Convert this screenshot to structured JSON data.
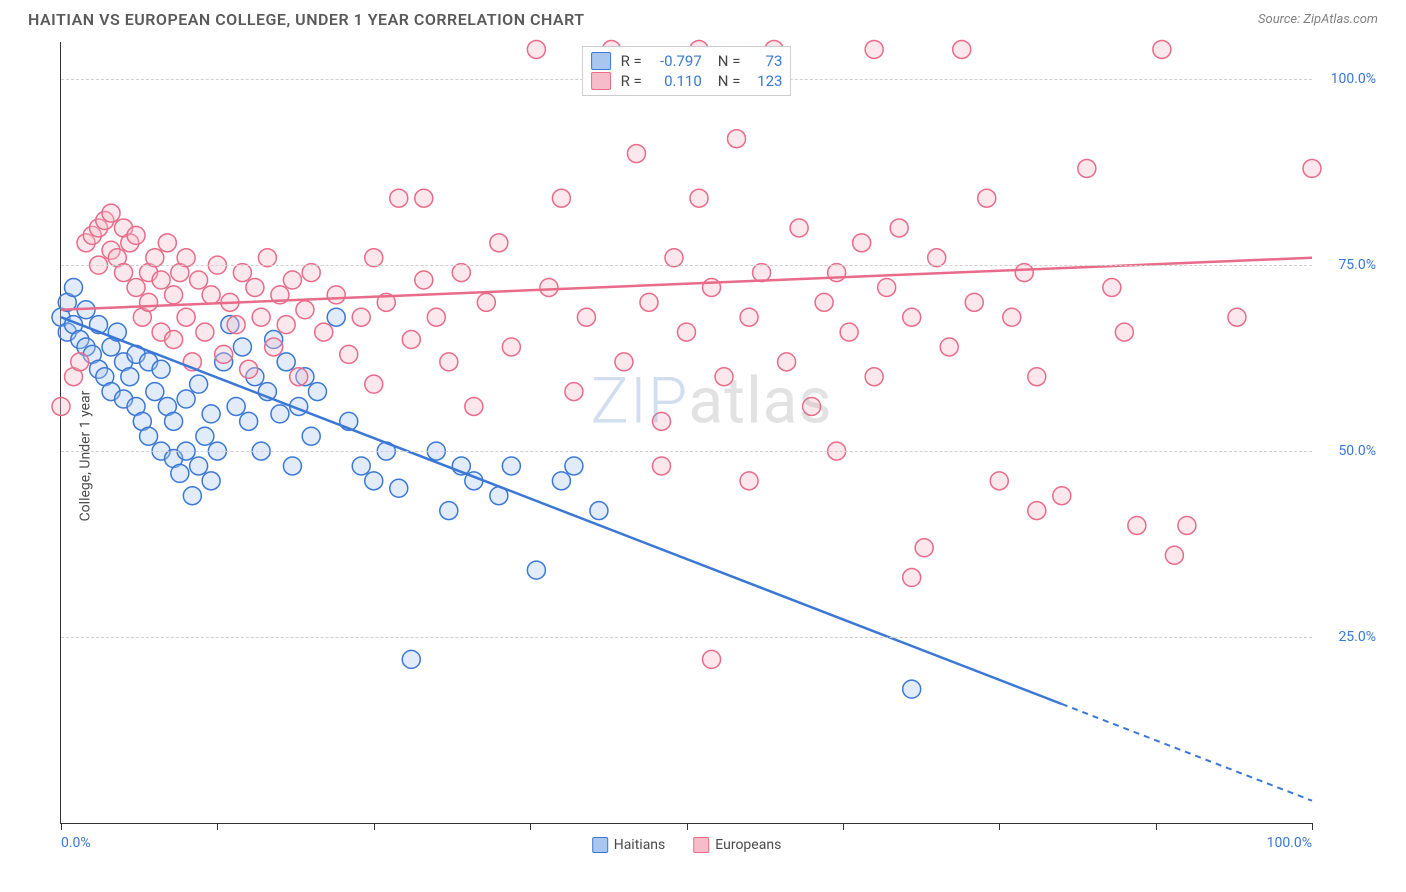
{
  "header": {
    "title": "HAITIAN VS EUROPEAN COLLEGE, UNDER 1 YEAR CORRELATION CHART",
    "source": "Source: ZipAtlas.com"
  },
  "watermark": {
    "part1": "ZIP",
    "part2": "atlas"
  },
  "chart": {
    "type": "scatter",
    "ylabel": "College, Under 1 year",
    "background_color": "#ffffff",
    "grid_color": "#d0d0d0",
    "axis_color": "#333333",
    "tick_label_color": "#3878d6",
    "xlim": [
      0,
      100
    ],
    "ylim": [
      0,
      105
    ],
    "xticks": [
      0,
      12.5,
      25,
      37.5,
      50,
      62.5,
      75,
      87.5,
      100
    ],
    "xtick_labels": {
      "0": "0.0%",
      "100": "100.0%"
    },
    "yticks": [
      25,
      50,
      75,
      100
    ],
    "ytick_labels": {
      "25": "25.0%",
      "50": "50.0%",
      "75": "75.0%",
      "100": "100.0%"
    },
    "marker_radius": 9,
    "marker_stroke_width": 1.5,
    "marker_fill_opacity": 0.35,
    "line_width": 2.5,
    "series": [
      {
        "key": "haitians",
        "label": "Haitians",
        "color_stroke": "#3b78d6",
        "color_fill": "#a9c6ef",
        "R": "-0.797",
        "N": "73",
        "trend": {
          "x1": 0,
          "y1": 68,
          "x2": 100,
          "y2": 3,
          "dash_from_x": 80
        },
        "points": [
          [
            0,
            68
          ],
          [
            0.5,
            70
          ],
          [
            0.5,
            66
          ],
          [
            1,
            67
          ],
          [
            1,
            72
          ],
          [
            1.5,
            65
          ],
          [
            2,
            64
          ],
          [
            2,
            69
          ],
          [
            2.5,
            63
          ],
          [
            3,
            67
          ],
          [
            3,
            61
          ],
          [
            3.5,
            60
          ],
          [
            4,
            64
          ],
          [
            4,
            58
          ],
          [
            4.5,
            66
          ],
          [
            5,
            62
          ],
          [
            5,
            57
          ],
          [
            5.5,
            60
          ],
          [
            6,
            56
          ],
          [
            6,
            63
          ],
          [
            6.5,
            54
          ],
          [
            7,
            62
          ],
          [
            7,
            52
          ],
          [
            7.5,
            58
          ],
          [
            8,
            50
          ],
          [
            8,
            61
          ],
          [
            8.5,
            56
          ],
          [
            9,
            54
          ],
          [
            9,
            49
          ],
          [
            9.5,
            47
          ],
          [
            10,
            57
          ],
          [
            10,
            50
          ],
          [
            10.5,
            44
          ],
          [
            11,
            59
          ],
          [
            11,
            48
          ],
          [
            11.5,
            52
          ],
          [
            12,
            55
          ],
          [
            12,
            46
          ],
          [
            12.5,
            50
          ],
          [
            13,
            62
          ],
          [
            13.5,
            67
          ],
          [
            14,
            56
          ],
          [
            14.5,
            64
          ],
          [
            15,
            54
          ],
          [
            15.5,
            60
          ],
          [
            16,
            50
          ],
          [
            16.5,
            58
          ],
          [
            17,
            65
          ],
          [
            17.5,
            55
          ],
          [
            18,
            62
          ],
          [
            18.5,
            48
          ],
          [
            19,
            56
          ],
          [
            19.5,
            60
          ],
          [
            20,
            52
          ],
          [
            20.5,
            58
          ],
          [
            22,
            68
          ],
          [
            23,
            54
          ],
          [
            24,
            48
          ],
          [
            25,
            46
          ],
          [
            26,
            50
          ],
          [
            27,
            45
          ],
          [
            28,
            22
          ],
          [
            30,
            50
          ],
          [
            31,
            42
          ],
          [
            32,
            48
          ],
          [
            33,
            46
          ],
          [
            35,
            44
          ],
          [
            36,
            48
          ],
          [
            38,
            34
          ],
          [
            40,
            46
          ],
          [
            41,
            48
          ],
          [
            43,
            42
          ],
          [
            68,
            18
          ]
        ]
      },
      {
        "key": "europeans",
        "label": "Europeans",
        "color_stroke": "#e86b8a",
        "color_fill": "#f7bcc9",
        "R": "0.110",
        "N": "123",
        "trend": {
          "x1": 0,
          "y1": 69,
          "x2": 100,
          "y2": 76,
          "dash_from_x": 100
        },
        "points": [
          [
            0,
            56
          ],
          [
            1,
            60
          ],
          [
            1.5,
            62
          ],
          [
            2,
            78
          ],
          [
            2.5,
            79
          ],
          [
            3,
            80
          ],
          [
            3,
            75
          ],
          [
            3.5,
            81
          ],
          [
            4,
            77
          ],
          [
            4,
            82
          ],
          [
            4.5,
            76
          ],
          [
            5,
            80
          ],
          [
            5,
            74
          ],
          [
            5.5,
            78
          ],
          [
            6,
            72
          ],
          [
            6,
            79
          ],
          [
            6.5,
            68
          ],
          [
            7,
            74
          ],
          [
            7,
            70
          ],
          [
            7.5,
            76
          ],
          [
            8,
            66
          ],
          [
            8,
            73
          ],
          [
            8.5,
            78
          ],
          [
            9,
            71
          ],
          [
            9,
            65
          ],
          [
            9.5,
            74
          ],
          [
            10,
            68
          ],
          [
            10,
            76
          ],
          [
            10.5,
            62
          ],
          [
            11,
            73
          ],
          [
            11.5,
            66
          ],
          [
            12,
            71
          ],
          [
            12.5,
            75
          ],
          [
            13,
            63
          ],
          [
            13.5,
            70
          ],
          [
            14,
            67
          ],
          [
            14.5,
            74
          ],
          [
            15,
            61
          ],
          [
            15.5,
            72
          ],
          [
            16,
            68
          ],
          [
            16.5,
            76
          ],
          [
            17,
            64
          ],
          [
            17.5,
            71
          ],
          [
            18,
            67
          ],
          [
            18.5,
            73
          ],
          [
            19,
            60
          ],
          [
            19.5,
            69
          ],
          [
            20,
            74
          ],
          [
            21,
            66
          ],
          [
            22,
            71
          ],
          [
            23,
            63
          ],
          [
            24,
            68
          ],
          [
            25,
            59
          ],
          [
            25,
            76
          ],
          [
            26,
            70
          ],
          [
            27,
            84
          ],
          [
            28,
            65
          ],
          [
            29,
            73
          ],
          [
            29,
            84
          ],
          [
            30,
            68
          ],
          [
            31,
            62
          ],
          [
            32,
            74
          ],
          [
            33,
            56
          ],
          [
            34,
            70
          ],
          [
            35,
            78
          ],
          [
            36,
            64
          ],
          [
            38,
            104
          ],
          [
            39,
            72
          ],
          [
            40,
            84
          ],
          [
            41,
            58
          ],
          [
            42,
            68
          ],
          [
            44,
            104
          ],
          [
            45,
            62
          ],
          [
            46,
            90
          ],
          [
            47,
            70
          ],
          [
            48,
            54
          ],
          [
            49,
            76
          ],
          [
            50,
            66
          ],
          [
            51,
            104
          ],
          [
            51,
            84
          ],
          [
            52,
            72
          ],
          [
            52,
            22
          ],
          [
            53,
            60
          ],
          [
            54,
            92
          ],
          [
            55,
            68
          ],
          [
            56,
            74
          ],
          [
            57,
            104
          ],
          [
            58,
            62
          ],
          [
            59,
            80
          ],
          [
            60,
            56
          ],
          [
            61,
            70
          ],
          [
            62,
            74
          ],
          [
            63,
            66
          ],
          [
            64,
            78
          ],
          [
            65,
            60
          ],
          [
            65,
            104
          ],
          [
            66,
            72
          ],
          [
            67,
            80
          ],
          [
            68,
            68
          ],
          [
            69,
            37
          ],
          [
            70,
            76
          ],
          [
            71,
            64
          ],
          [
            72,
            104
          ],
          [
            73,
            70
          ],
          [
            74,
            84
          ],
          [
            75,
            46
          ],
          [
            76,
            68
          ],
          [
            77,
            74
          ],
          [
            78,
            60
          ],
          [
            80,
            44
          ],
          [
            82,
            88
          ],
          [
            84,
            72
          ],
          [
            85,
            66
          ],
          [
            86,
            40
          ],
          [
            88,
            104
          ],
          [
            89,
            36
          ],
          [
            94,
            68
          ],
          [
            100,
            88
          ],
          [
            48,
            48
          ],
          [
            55,
            46
          ],
          [
            62,
            50
          ],
          [
            68,
            33
          ],
          [
            78,
            42
          ],
          [
            90,
            40
          ]
        ]
      }
    ],
    "legend": {
      "bottom_items": [
        "haitians",
        "europeans"
      ]
    }
  }
}
